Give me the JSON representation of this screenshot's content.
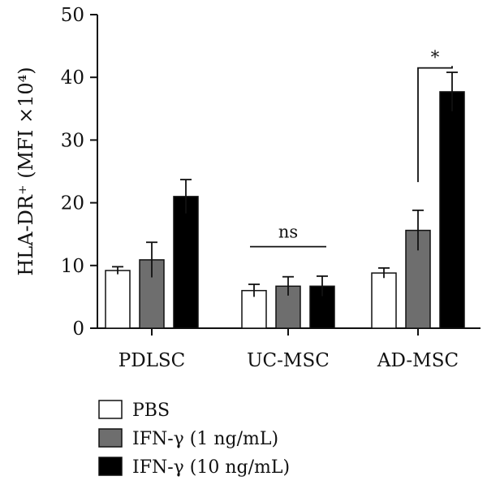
{
  "chart_data": {
    "type": "bar",
    "ylabel": "HLA-DR⁺ (MFI ×10⁴)",
    "ylim": [
      0,
      50
    ],
    "yticks": [
      0,
      10,
      20,
      30,
      40,
      50
    ],
    "categories": [
      "PDLSC",
      "UC-MSC",
      "AD-MSC"
    ],
    "series": [
      {
        "name": "PBS",
        "values": [
          9.2,
          6.0,
          8.8
        ],
        "errors": [
          0.6,
          1.0,
          0.8
        ],
        "color": "#ffffff"
      },
      {
        "name": "IFN-γ (1 ng/mL)",
        "values": [
          10.9,
          6.7,
          15.6
        ],
        "errors": [
          2.8,
          1.5,
          3.2
        ],
        "color": "#6e6e6e"
      },
      {
        "name": "IFN-γ (10 ng/mL)",
        "values": [
          21.0,
          6.7,
          37.7
        ],
        "errors": [
          2.7,
          1.6,
          3.1
        ],
        "color": "#000000"
      }
    ],
    "annotations": [
      {
        "label": "ns",
        "category": "UC-MSC",
        "y": 13
      },
      {
        "label": "*",
        "category": "AD-MSC",
        "between": [
          "IFN-γ (1 ng/mL)",
          "IFN-γ (10 ng/mL)"
        ],
        "y": 41.5
      }
    ],
    "legend_position": "bottom-left",
    "grid": false
  }
}
